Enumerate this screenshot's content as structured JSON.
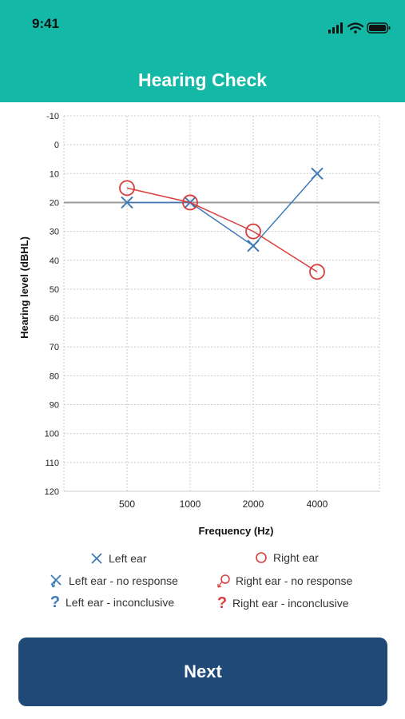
{
  "status_bar": {
    "time": "9:41"
  },
  "header": {
    "title": "Hearing Check"
  },
  "chart_data": {
    "type": "scatter",
    "title": "",
    "xlabel": "Frequency (Hz)",
    "ylabel": "Hearing level (dBHL)",
    "x_categories": [
      "500",
      "1000",
      "2000",
      "4000"
    ],
    "y_ticks": [
      -10,
      0,
      10,
      20,
      30,
      40,
      50,
      60,
      70,
      80,
      90,
      100,
      110,
      120
    ],
    "ylim": [
      -10,
      120
    ],
    "y_inverted": true,
    "reference_line": 20,
    "grid": true,
    "series": [
      {
        "name": "Left ear",
        "marker": "x",
        "color": "#3c7ab8",
        "values": [
          20,
          20,
          35,
          10
        ]
      },
      {
        "name": "Right ear",
        "marker": "o",
        "color": "#dc3c3c",
        "values": [
          15,
          20,
          30,
          44
        ]
      }
    ]
  },
  "legend": {
    "left_ear": "Left ear",
    "right_ear": "Right ear",
    "left_no_response": "Left ear - no response",
    "right_no_response": "Right ear - no response",
    "left_inconclusive": "Left ear - inconclusive",
    "right_inconclusive": "Right ear - inconclusive",
    "inconclusive_symbol": "?"
  },
  "actions": {
    "next_label": "Next"
  },
  "colors": {
    "header": "#14b8a6",
    "button": "#1f4a78",
    "left": "#3c7ab8",
    "right": "#dc3c3c"
  }
}
